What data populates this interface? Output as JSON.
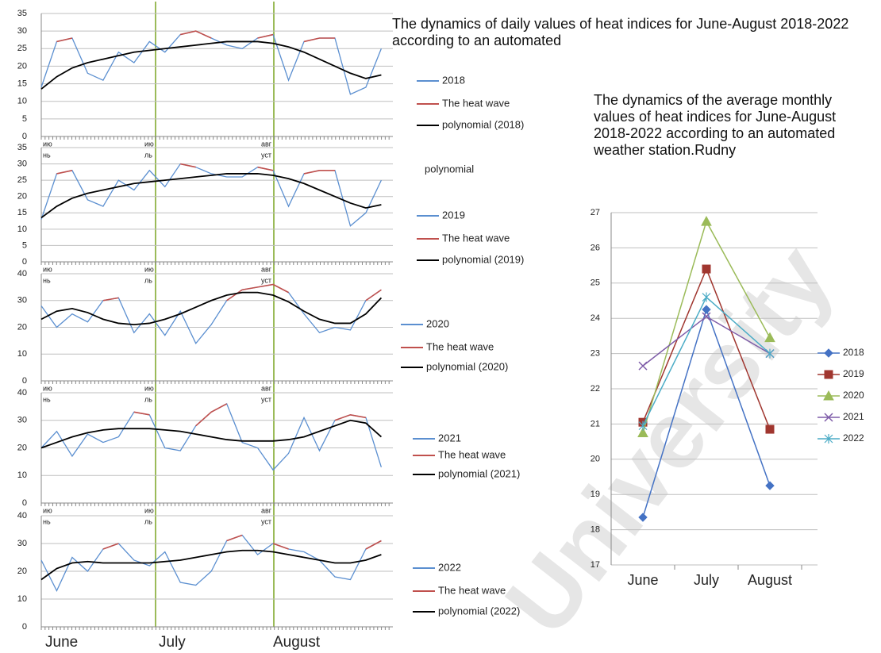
{
  "title": "The dynamics of daily values of heat indices for June-August 2018-2022 according to an automated",
  "watermark": "University",
  "chart_data": [
    {
      "type": "line",
      "xlim": [
        1,
        92
      ],
      "ylim": [
        0,
        35
      ],
      "yticks": [
        0,
        5,
        10,
        15,
        20,
        25,
        30,
        35
      ],
      "x": [
        1,
        5,
        9,
        13,
        17,
        21,
        25,
        29,
        33,
        37,
        41,
        45,
        49,
        53,
        57,
        61,
        65,
        69,
        73,
        77,
        81,
        85,
        89
      ],
      "series": [
        {
          "name": "2018",
          "color": "#5b8fd0",
          "values": [
            14,
            27,
            28,
            18,
            16,
            24,
            21,
            27,
            24,
            29,
            30,
            28,
            26,
            25,
            28,
            29,
            16,
            27,
            28,
            28,
            12,
            14,
            25
          ]
        },
        {
          "name": "The heat wave",
          "color": "#c0504d",
          "values": [
            null,
            27,
            28,
            null,
            null,
            null,
            null,
            null,
            null,
            29,
            30,
            28,
            null,
            null,
            28,
            29,
            null,
            27,
            28,
            28,
            null,
            null,
            null
          ]
        },
        {
          "name": "polynomial (2018)",
          "color": "#000000",
          "values": [
            13.5,
            17,
            19.5,
            21,
            22,
            23,
            24,
            24.5,
            25,
            25.5,
            26,
            26.5,
            27,
            27,
            27,
            26.5,
            25.5,
            24,
            22,
            20,
            18,
            16.5,
            17.5
          ]
        }
      ],
      "month_labels": [
        [
          "ию",
          "нь"
        ],
        [
          "ию",
          "ль"
        ],
        [
          "авг",
          "уст"
        ]
      ]
    },
    {
      "type": "line",
      "xlim": [
        1,
        92
      ],
      "ylim": [
        0,
        35
      ],
      "yticks": [
        0,
        5,
        10,
        15,
        20,
        25,
        30,
        35
      ],
      "x": [
        1,
        5,
        9,
        13,
        17,
        21,
        25,
        29,
        33,
        37,
        41,
        45,
        49,
        53,
        57,
        61,
        65,
        69,
        73,
        77,
        81,
        85,
        89
      ],
      "annotation": "polynomial",
      "series": [
        {
          "name": "2019",
          "color": "#5b8fd0",
          "values": [
            13,
            27,
            28,
            19,
            17,
            25,
            22,
            28,
            23,
            30,
            29,
            27,
            26,
            26,
            29,
            28,
            17,
            27,
            28,
            28,
            11,
            15,
            25
          ]
        },
        {
          "name": "The heat wave",
          "color": "#c0504d",
          "values": [
            null,
            27,
            28,
            null,
            null,
            null,
            null,
            28,
            null,
            30,
            29,
            null,
            null,
            null,
            29,
            28,
            null,
            27,
            28,
            28,
            null,
            null,
            null
          ]
        },
        {
          "name": "polynomial (2019)",
          "color": "#000000",
          "values": [
            13.5,
            17,
            19.5,
            21,
            22,
            23,
            24,
            24.5,
            25,
            25.5,
            26,
            26.5,
            27,
            27,
            27,
            26.5,
            25.5,
            24,
            22,
            20,
            18,
            16.5,
            17.5
          ]
        }
      ],
      "month_labels": [
        [
          "ию",
          "нь"
        ],
        [
          "ию",
          "ль"
        ],
        [
          "авг",
          "уст"
        ]
      ]
    },
    {
      "type": "line",
      "xlim": [
        1,
        92
      ],
      "ylim": [
        0,
        40
      ],
      "yticks": [
        0,
        10,
        20,
        30,
        40
      ],
      "x": [
        1,
        5,
        9,
        13,
        17,
        21,
        25,
        29,
        33,
        37,
        41,
        45,
        49,
        53,
        57,
        61,
        65,
        69,
        73,
        77,
        81,
        85,
        89
      ],
      "series": [
        {
          "name": "2020",
          "color": "#5b8fd0",
          "values": [
            28,
            20,
            25,
            22,
            30,
            31,
            18,
            25,
            17,
            26,
            14,
            21,
            30,
            34,
            35,
            36,
            33,
            25,
            18,
            20,
            19,
            30,
            34
          ]
        },
        {
          "name": "The heat wave",
          "color": "#c0504d",
          "values": [
            null,
            null,
            null,
            null,
            30,
            31,
            null,
            null,
            null,
            null,
            null,
            null,
            30,
            34,
            35,
            36,
            33,
            null,
            null,
            null,
            null,
            30,
            34
          ]
        },
        {
          "name": "polynomial (2020)",
          "color": "#000000",
          "values": [
            23,
            26,
            27,
            25.5,
            23,
            21.5,
            21,
            21.5,
            23,
            25,
            27.5,
            30,
            32,
            33,
            33,
            32,
            29.5,
            26,
            23,
            21.5,
            21.5,
            25,
            31
          ]
        }
      ],
      "month_labels": [
        [
          "ию",
          "нь"
        ],
        [
          "ию",
          "ль"
        ],
        [
          "авг",
          "уст"
        ]
      ]
    },
    {
      "type": "line",
      "xlim": [
        1,
        92
      ],
      "ylim": [
        0,
        40
      ],
      "yticks": [
        0,
        10,
        20,
        30,
        40
      ],
      "x": [
        1,
        5,
        9,
        13,
        17,
        21,
        25,
        29,
        33,
        37,
        41,
        45,
        49,
        53,
        57,
        61,
        65,
        69,
        73,
        77,
        81,
        85,
        89
      ],
      "series": [
        {
          "name": "2021",
          "color": "#5b8fd0",
          "values": [
            20,
            26,
            17,
            25,
            22,
            24,
            33,
            32,
            20,
            19,
            28,
            33,
            36,
            22,
            20,
            12,
            18,
            31,
            19,
            30,
            32,
            31,
            13
          ]
        },
        {
          "name": "The heat wave",
          "color": "#c0504d",
          "values": [
            null,
            null,
            null,
            null,
            null,
            null,
            33,
            32,
            null,
            null,
            28,
            33,
            36,
            null,
            null,
            null,
            null,
            null,
            null,
            30,
            32,
            31,
            null
          ]
        },
        {
          "name": "polynomial (2021)",
          "color": "#000000",
          "values": [
            20,
            22,
            24,
            25.5,
            26.5,
            27,
            27,
            27,
            26.5,
            26,
            25,
            24,
            23,
            22.5,
            22.5,
            22.5,
            23,
            24,
            26,
            28,
            30,
            29,
            24
          ]
        }
      ],
      "month_labels": [
        [
          "ию",
          "нь"
        ],
        [
          "ию",
          "ль"
        ],
        [
          "авг",
          "уст"
        ]
      ]
    },
    {
      "type": "line",
      "xlim": [
        1,
        92
      ],
      "ylim": [
        0,
        40
      ],
      "yticks": [
        0,
        10,
        20,
        30,
        40
      ],
      "x": [
        1,
        5,
        9,
        13,
        17,
        21,
        25,
        29,
        33,
        37,
        41,
        45,
        49,
        53,
        57,
        61,
        65,
        69,
        73,
        77,
        81,
        85,
        89
      ],
      "series": [
        {
          "name": "2022",
          "color": "#5b8fd0",
          "values": [
            24,
            13,
            25,
            20,
            28,
            30,
            24,
            22,
            27,
            16,
            15,
            20,
            31,
            33,
            26,
            30,
            28,
            27,
            24,
            18,
            17,
            28,
            31
          ]
        },
        {
          "name": "The heat wave",
          "color": "#c0504d",
          "values": [
            null,
            null,
            null,
            null,
            28,
            30,
            null,
            null,
            null,
            null,
            null,
            null,
            31,
            33,
            null,
            30,
            28,
            null,
            null,
            null,
            null,
            28,
            31
          ]
        },
        {
          "name": "polynomial (2022)",
          "color": "#000000",
          "values": [
            17,
            21,
            23,
            23.5,
            23,
            23,
            23,
            23,
            23.5,
            24,
            25,
            26,
            27,
            27.5,
            27.5,
            27,
            26,
            25,
            24,
            23,
            23,
            24,
            26
          ]
        }
      ],
      "x_labels": [
        "June",
        "July",
        "August"
      ]
    },
    {
      "type": "line",
      "title": "The dynamics of the average monthly values of heat indices for June-August 2018-2022 according to an automated weather station.Rudny",
      "categories": [
        "June",
        "July",
        "August"
      ],
      "ylim": [
        17,
        27
      ],
      "yticks": [
        17,
        18,
        19,
        20,
        21,
        22,
        23,
        24,
        25,
        26,
        27
      ],
      "series": [
        {
          "name": "2018",
          "color": "#4472c4",
          "marker": "diamond",
          "values": [
            18.35,
            24.25,
            19.25
          ]
        },
        {
          "name": "2019",
          "color": "#a0362f",
          "marker": "square",
          "values": [
            21.05,
            25.4,
            20.85
          ]
        },
        {
          "name": "2020",
          "color": "#9bbb59",
          "marker": "triangle",
          "values": [
            20.75,
            26.75,
            23.45
          ]
        },
        {
          "name": "2021",
          "color": "#7e5ca8",
          "marker": "x",
          "values": [
            22.65,
            24.05,
            23.0
          ]
        },
        {
          "name": "2022",
          "color": "#4bacc6",
          "marker": "star",
          "values": [
            20.95,
            24.6,
            23.0
          ]
        }
      ]
    }
  ]
}
